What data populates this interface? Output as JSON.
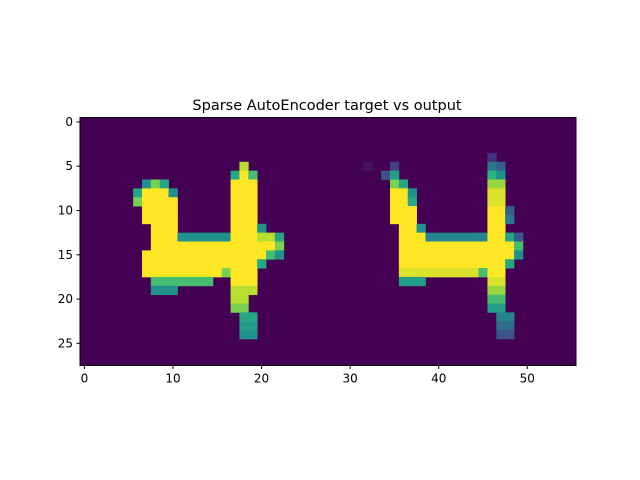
{
  "chart_data": {
    "type": "heatmap",
    "title": "Sparse AutoEncoder target vs output",
    "xlabel": "",
    "ylabel": "",
    "columns": 56,
    "rows": 28,
    "x_ticks": [
      0,
      10,
      20,
      30,
      40,
      50
    ],
    "y_ticks": [
      0,
      5,
      10,
      15,
      20,
      25
    ],
    "xlim": [
      -0.5,
      55.5
    ],
    "ylim": [
      27.5,
      -0.5
    ],
    "colormap": "viridis",
    "value_range": [
      0,
      1
    ],
    "background_value": 0,
    "grid": false,
    "panels": [
      {
        "label": "target",
        "x_range": [
          0,
          27
        ]
      },
      {
        "label": "output",
        "x_range": [
          28,
          55
        ]
      }
    ],
    "pixels": [
      {
        "row": 5,
        "cols": [
          [
            18,
            18,
            0.9
          ]
        ]
      },
      {
        "row": 6,
        "cols": [
          [
            17,
            17,
            0.6
          ],
          [
            18,
            18,
            1.0
          ],
          [
            19,
            19,
            0.7
          ]
        ]
      },
      {
        "row": 7,
        "cols": [
          [
            7,
            7,
            0.5
          ],
          [
            8,
            8,
            0.8
          ],
          [
            9,
            9,
            0.6
          ],
          [
            17,
            19,
            1.0
          ]
        ]
      },
      {
        "row": 8,
        "cols": [
          [
            6,
            6,
            0.6
          ],
          [
            7,
            9,
            1.0
          ],
          [
            10,
            10,
            0.5
          ],
          [
            17,
            19,
            1.0
          ]
        ]
      },
      {
        "row": 9,
        "cols": [
          [
            6,
            6,
            0.8
          ],
          [
            7,
            10,
            1.0
          ],
          [
            17,
            19,
            1.0
          ]
        ]
      },
      {
        "row": 10,
        "cols": [
          [
            7,
            10,
            1.0
          ],
          [
            17,
            19,
            1.0
          ]
        ]
      },
      {
        "row": 11,
        "cols": [
          [
            7,
            10,
            1.0
          ],
          [
            17,
            19,
            1.0
          ]
        ]
      },
      {
        "row": 12,
        "cols": [
          [
            8,
            10,
            1.0
          ],
          [
            17,
            19,
            1.0
          ],
          [
            20,
            20,
            0.5
          ]
        ]
      },
      {
        "row": 13,
        "cols": [
          [
            8,
            10,
            1.0
          ],
          [
            11,
            16,
            0.5
          ],
          [
            17,
            19,
            1.0
          ],
          [
            20,
            21,
            0.9
          ],
          [
            22,
            22,
            0.6
          ]
        ]
      },
      {
        "row": 14,
        "cols": [
          [
            8,
            21,
            1.0
          ],
          [
            22,
            22,
            0.8
          ]
        ]
      },
      {
        "row": 15,
        "cols": [
          [
            7,
            20,
            1.0
          ],
          [
            21,
            21,
            0.7
          ],
          [
            22,
            22,
            0.5
          ]
        ]
      },
      {
        "row": 16,
        "cols": [
          [
            7,
            19,
            1.0
          ],
          [
            20,
            20,
            0.6
          ]
        ]
      },
      {
        "row": 17,
        "cols": [
          [
            7,
            15,
            1.0
          ],
          [
            16,
            16,
            0.8
          ],
          [
            17,
            19,
            1.0
          ]
        ]
      },
      {
        "row": 18,
        "cols": [
          [
            8,
            14,
            0.7
          ],
          [
            17,
            19,
            1.0
          ]
        ]
      },
      {
        "row": 19,
        "cols": [
          [
            8,
            10,
            0.5
          ],
          [
            17,
            19,
            0.9
          ]
        ]
      },
      {
        "row": 20,
        "cols": [
          [
            17,
            18,
            0.9
          ]
        ]
      },
      {
        "row": 21,
        "cols": [
          [
            17,
            18,
            0.8
          ]
        ]
      },
      {
        "row": 22,
        "cols": [
          [
            18,
            19,
            0.6
          ]
        ]
      },
      {
        "row": 23,
        "cols": [
          [
            18,
            19,
            0.55
          ]
        ]
      },
      {
        "row": 24,
        "cols": [
          [
            18,
            19,
            0.5
          ]
        ]
      },
      {
        "row": 4,
        "cols": [
          [
            46,
            46,
            0.15
          ]
        ]
      },
      {
        "row": 5,
        "cols": [
          [
            32,
            32,
            0.05
          ],
          [
            35,
            35,
            0.2
          ],
          [
            46,
            46,
            0.4
          ],
          [
            47,
            47,
            0.3
          ]
        ]
      },
      {
        "row": 6,
        "cols": [
          [
            34,
            34,
            0.25
          ],
          [
            35,
            35,
            0.55
          ],
          [
            46,
            46,
            0.65
          ],
          [
            47,
            47,
            0.5
          ]
        ]
      },
      {
        "row": 7,
        "cols": [
          [
            35,
            35,
            0.8
          ],
          [
            36,
            36,
            0.6
          ],
          [
            46,
            47,
            0.85
          ]
        ]
      },
      {
        "row": 8,
        "cols": [
          [
            35,
            36,
            1.0
          ],
          [
            37,
            37,
            0.5
          ],
          [
            46,
            47,
            0.95
          ]
        ]
      },
      {
        "row": 9,
        "cols": [
          [
            35,
            36,
            1.0
          ],
          [
            37,
            37,
            0.6
          ],
          [
            46,
            47,
            0.95
          ]
        ]
      },
      {
        "row": 10,
        "cols": [
          [
            35,
            37,
            1.0
          ],
          [
            46,
            47,
            1.0
          ],
          [
            48,
            48,
            0.3
          ]
        ]
      },
      {
        "row": 11,
        "cols": [
          [
            35,
            37,
            1.0
          ],
          [
            46,
            47,
            1.0
          ],
          [
            48,
            48,
            0.4
          ]
        ]
      },
      {
        "row": 12,
        "cols": [
          [
            36,
            37,
            1.0
          ],
          [
            38,
            38,
            0.5
          ],
          [
            46,
            47,
            1.0
          ]
        ]
      },
      {
        "row": 13,
        "cols": [
          [
            36,
            38,
            1.0
          ],
          [
            39,
            45,
            0.45
          ],
          [
            46,
            47,
            1.0
          ],
          [
            48,
            48,
            0.6
          ],
          [
            49,
            49,
            0.3
          ]
        ]
      },
      {
        "row": 14,
        "cols": [
          [
            36,
            48,
            1.0
          ],
          [
            49,
            49,
            0.7
          ]
        ]
      },
      {
        "row": 15,
        "cols": [
          [
            36,
            48,
            1.0
          ],
          [
            49,
            49,
            0.5
          ]
        ]
      },
      {
        "row": 16,
        "cols": [
          [
            36,
            47,
            1.0
          ],
          [
            48,
            48,
            0.6
          ]
        ]
      },
      {
        "row": 17,
        "cols": [
          [
            36,
            44,
            0.95
          ],
          [
            45,
            45,
            0.7
          ],
          [
            46,
            47,
            1.0
          ]
        ]
      },
      {
        "row": 18,
        "cols": [
          [
            36,
            38,
            0.55
          ],
          [
            46,
            47,
            0.95
          ]
        ]
      },
      {
        "row": 19,
        "cols": [
          [
            46,
            47,
            0.85
          ]
        ]
      },
      {
        "row": 20,
        "cols": [
          [
            46,
            47,
            0.7
          ]
        ]
      },
      {
        "row": 21,
        "cols": [
          [
            46,
            47,
            0.55
          ]
        ]
      },
      {
        "row": 22,
        "cols": [
          [
            47,
            48,
            0.45
          ]
        ]
      },
      {
        "row": 23,
        "cols": [
          [
            47,
            48,
            0.35
          ]
        ]
      },
      {
        "row": 24,
        "cols": [
          [
            47,
            48,
            0.25
          ]
        ]
      }
    ]
  }
}
